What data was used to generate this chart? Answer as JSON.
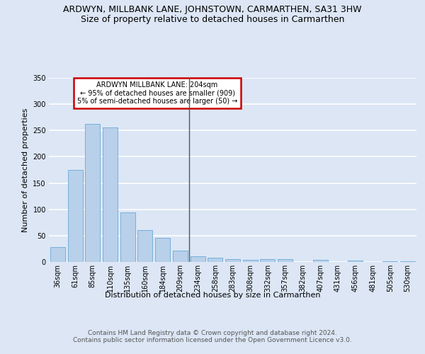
{
  "title": "ARDWYN, MILLBANK LANE, JOHNSTOWN, CARMARTHEN, SA31 3HW",
  "subtitle": "Size of property relative to detached houses in Carmarthen",
  "xlabel": "Distribution of detached houses by size in Carmarthen",
  "ylabel": "Number of detached properties",
  "footer_line1": "Contains HM Land Registry data © Crown copyright and database right 2024.",
  "footer_line2": "Contains public sector information licensed under the Open Government Licence v3.0.",
  "categories": [
    "36sqm",
    "61sqm",
    "85sqm",
    "110sqm",
    "135sqm",
    "160sqm",
    "184sqm",
    "209sqm",
    "234sqm",
    "258sqm",
    "283sqm",
    "308sqm",
    "332sqm",
    "357sqm",
    "382sqm",
    "407sqm",
    "431sqm",
    "456sqm",
    "481sqm",
    "505sqm",
    "530sqm"
  ],
  "values": [
    28,
    175,
    263,
    256,
    94,
    60,
    46,
    21,
    11,
    8,
    5,
    4,
    5,
    5,
    0,
    4,
    0,
    3,
    0,
    2,
    2
  ],
  "bar_color": "#b8d0ea",
  "bar_edge_color": "#6aaad4",
  "highlight_index": 7,
  "highlight_line_color": "#555555",
  "annotation_title": "ARDWYN MILLBANK LANE: 204sqm",
  "annotation_line1": "← 95% of detached houses are smaller (909)",
  "annotation_line2": "5% of semi-detached houses are larger (50) →",
  "annotation_box_color": "#ffffff",
  "annotation_box_edge_color": "#cc0000",
  "ylim": [
    0,
    350
  ],
  "yticks": [
    0,
    50,
    100,
    150,
    200,
    250,
    300,
    350
  ],
  "bg_color": "#dce6f5",
  "plot_bg_color": "#dce6f5",
  "grid_color": "#ffffff",
  "title_fontsize": 9,
  "subtitle_fontsize": 9,
  "axis_label_fontsize": 8,
  "tick_fontsize": 7,
  "footer_fontsize": 6.5
}
